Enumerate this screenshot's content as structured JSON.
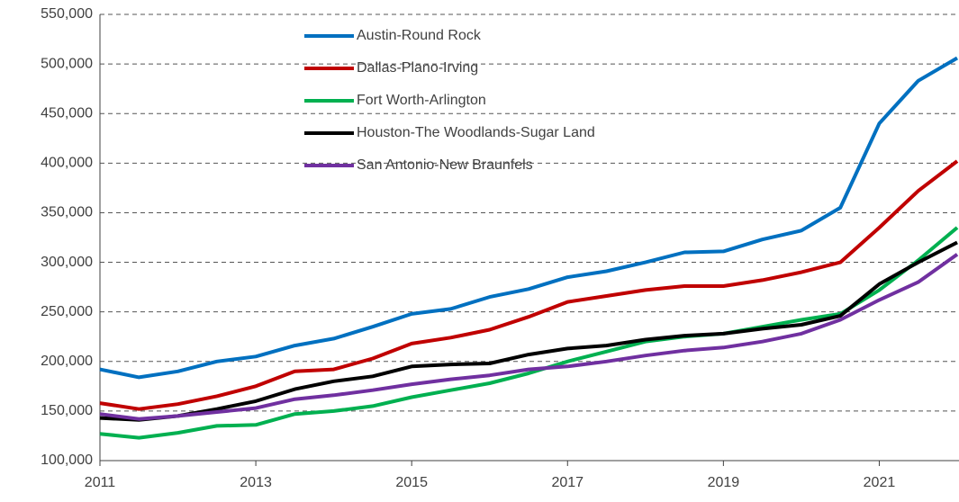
{
  "chart_data": {
    "type": "line",
    "x": [
      2011,
      2011.5,
      2012,
      2012.5,
      2013,
      2013.5,
      2014,
      2014.5,
      2015,
      2015.5,
      2016,
      2016.5,
      2017,
      2017.5,
      2018,
      2018.5,
      2019,
      2019.5,
      2020,
      2020.5,
      2021,
      2021.5,
      2022
    ],
    "series": [
      {
        "name": "Austin-Round Rock",
        "color": "#0070c0",
        "values": [
          192000,
          184000,
          190000,
          200000,
          205000,
          216000,
          223000,
          235000,
          248000,
          253000,
          265000,
          273000,
          285000,
          291000,
          300000,
          310000,
          311000,
          323000,
          332000,
          355000,
          440000,
          483000,
          506000
        ]
      },
      {
        "name": "Dallas-Plano-Irving",
        "color": "#c00000",
        "values": [
          158000,
          152000,
          157000,
          165000,
          175000,
          190000,
          192000,
          203000,
          218000,
          224000,
          232000,
          245000,
          260000,
          266000,
          272000,
          276000,
          276000,
          282000,
          290000,
          300000,
          335000,
          372000,
          402000
        ]
      },
      {
        "name": "Fort Worth-Arlington",
        "color": "#00b050",
        "values": [
          127000,
          123000,
          128000,
          135000,
          136000,
          147000,
          150000,
          155000,
          164000,
          171000,
          178000,
          188000,
          200000,
          210000,
          220000,
          225000,
          228000,
          235000,
          242000,
          248000,
          272000,
          302000,
          335000
        ]
      },
      {
        "name": "Houston-The Woodlands-Sugar Land",
        "color": "#000000",
        "values": [
          143000,
          141000,
          145000,
          152000,
          160000,
          172000,
          180000,
          185000,
          195000,
          197000,
          198000,
          207000,
          213000,
          216000,
          222000,
          226000,
          228000,
          233000,
          237000,
          246000,
          278000,
          300000,
          320000
        ]
      },
      {
        "name": "San Antonio-New Braunfels",
        "color": "#7030a0",
        "values": [
          147000,
          142000,
          145000,
          149000,
          153000,
          162000,
          166000,
          171000,
          177000,
          182000,
          186000,
          192000,
          195000,
          200000,
          206000,
          211000,
          214000,
          220000,
          228000,
          242000,
          262000,
          280000,
          308000
        ]
      }
    ],
    "xlim": [
      2011,
      2022
    ],
    "xticks": [
      2011,
      2013,
      2015,
      2017,
      2019,
      2021
    ],
    "ylim": [
      100000,
      550000
    ],
    "yticks": [
      {
        "value": 100000,
        "label": "100,000"
      },
      {
        "value": 150000,
        "label": "150,000"
      },
      {
        "value": 200000,
        "label": "200,000"
      },
      {
        "value": 250000,
        "label": "250,000"
      },
      {
        "value": 300000,
        "label": "300,000"
      },
      {
        "value": 350000,
        "label": "350,000"
      },
      {
        "value": 400000,
        "label": "400,000"
      },
      {
        "value": 450000,
        "label": "450,000"
      },
      {
        "value": 500000,
        "label": "500,000"
      },
      {
        "value": 550000,
        "label": "550,000"
      }
    ],
    "grid": true
  }
}
